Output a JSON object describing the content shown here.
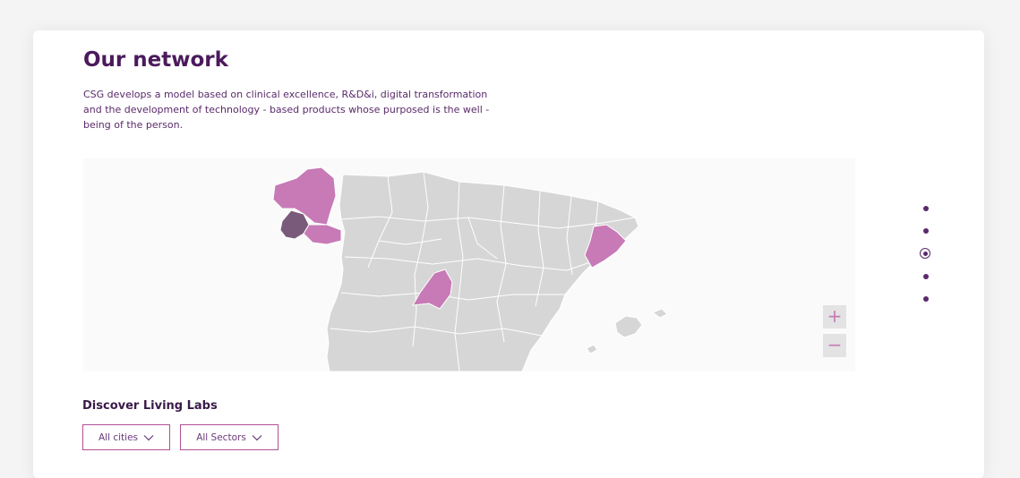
{
  "section": {
    "title": "Our network",
    "description": "CSG develops a model based on clinical excellence, R&D&i, digital transformation and the development of technology - based products whose purposed is the well - being of the person."
  },
  "map": {
    "zoom_in_label": "+",
    "zoom_out_label": "−",
    "colors": {
      "land": "#d6d6d6",
      "border": "#ffffff",
      "highlight": "#c77ab6",
      "selected": "#7a5a7a",
      "background": "#fafafa"
    },
    "highlighted_regions": [
      "lugo-a-coruna",
      "ourense",
      "madrid",
      "barcelona"
    ],
    "selected_region": "pontevedra"
  },
  "carousel": {
    "dot_count": 5,
    "active_index": 2
  },
  "discover": {
    "title": "Discover Living Labs"
  },
  "filters": {
    "cities_label": "All cities",
    "sectors_label": "All Sectors",
    "chevron_icon": "chevron-down-icon"
  }
}
